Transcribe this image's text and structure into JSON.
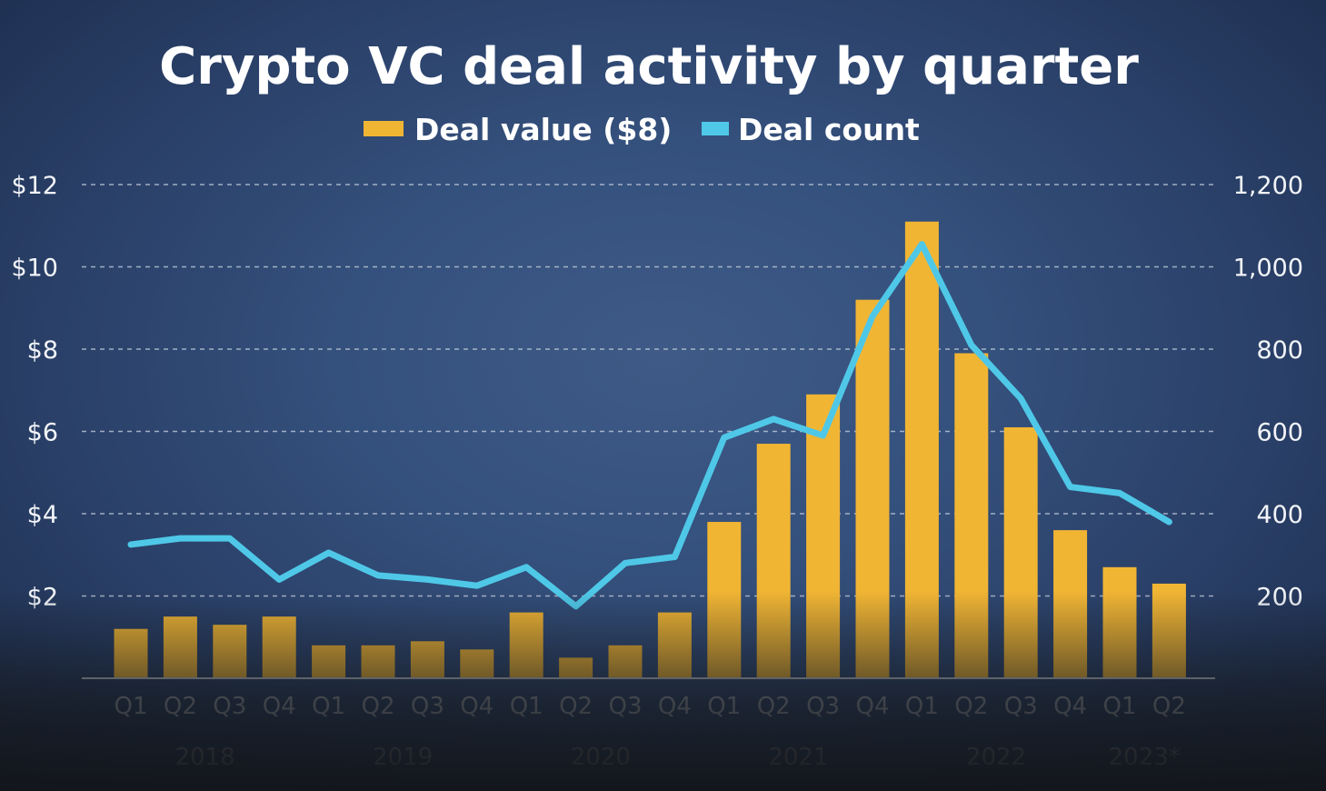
{
  "chart_data": {
    "type": "bar",
    "title": "Crypto VC deal activity by quarter",
    "categories": [
      "Q1",
      "Q2",
      "Q3",
      "Q4",
      "Q1",
      "Q2",
      "Q3",
      "Q4",
      "Q1",
      "Q2",
      "Q3",
      "Q4",
      "Q1",
      "Q2",
      "Q3",
      "Q4",
      "Q1",
      "Q2",
      "Q3",
      "Q4",
      "Q1",
      "Q2"
    ],
    "years": [
      {
        "label": "2018",
        "start": 0,
        "end": 3
      },
      {
        "label": "2019",
        "start": 4,
        "end": 7
      },
      {
        "label": "2020",
        "start": 8,
        "end": 11
      },
      {
        "label": "2021",
        "start": 12,
        "end": 15
      },
      {
        "label": "2022",
        "start": 16,
        "end": 19
      },
      {
        "label": "2023*",
        "start": 20,
        "end": 21
      }
    ],
    "series": [
      {
        "name": "Deal value ($8)",
        "kind": "bar",
        "axis": "left",
        "color": "#f1b534",
        "values": [
          1.2,
          1.5,
          1.3,
          1.5,
          0.8,
          0.8,
          0.9,
          0.7,
          1.6,
          0.5,
          0.8,
          1.6,
          3.8,
          5.7,
          6.9,
          9.2,
          11.1,
          7.9,
          6.1,
          3.6,
          2.7,
          2.3
        ]
      },
      {
        "name": "Deal count",
        "kind": "line",
        "axis": "right",
        "color": "#4fc8e8",
        "values": [
          325,
          340,
          340,
          240,
          305,
          250,
          240,
          225,
          270,
          175,
          280,
          295,
          585,
          630,
          590,
          880,
          1055,
          810,
          680,
          465,
          450,
          380
        ]
      }
    ],
    "y_left": {
      "ylim": [
        0,
        12
      ],
      "ticks": [
        2,
        4,
        6,
        8,
        10,
        12
      ],
      "tick_labels": [
        "$2",
        "$4",
        "$6",
        "$8",
        "$10",
        "$12"
      ]
    },
    "y_right": {
      "ylim": [
        0,
        1200
      ],
      "ticks": [
        200,
        400,
        600,
        800,
        1000,
        1200
      ],
      "tick_labels": [
        "200",
        "400",
        "600",
        "800",
        "1,000",
        "1,200"
      ]
    },
    "grid": true,
    "legend_position": "top-center"
  }
}
